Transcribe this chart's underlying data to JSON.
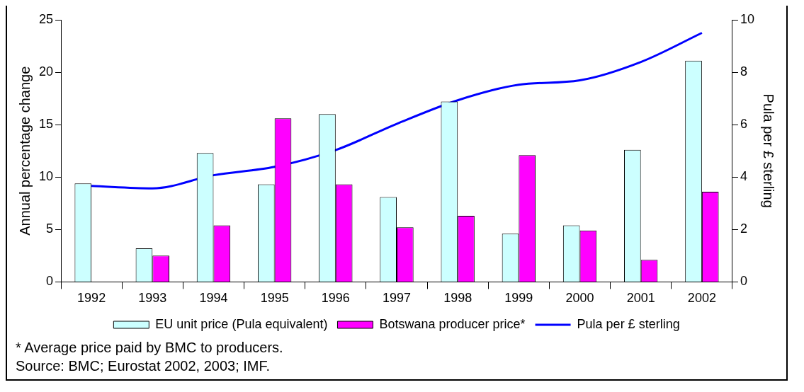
{
  "chart_data": {
    "type": "bar",
    "ylabel": "Annual percentage change",
    "y2label": "Pula per £ sterling",
    "categories": [
      "1992",
      "1993",
      "1994",
      "1995",
      "1996",
      "1997",
      "1998",
      "1999",
      "2000",
      "2001",
      "2002"
    ],
    "series": [
      {
        "name": "EU unit price (Pula equivalent)",
        "color": "#ccffff",
        "values": [
          9.4,
          3.2,
          12.3,
          9.3,
          16.0,
          8.1,
          17.2,
          4.6,
          5.4,
          12.6,
          21.1
        ]
      },
      {
        "name": "Botswana producer price*",
        "color": "#ff00ff",
        "values": [
          null,
          2.5,
          5.4,
          15.6,
          9.3,
          5.2,
          6.3,
          12.1,
          4.9,
          2.1,
          8.6
        ]
      },
      {
        "name": "Pula per £ sterling",
        "type": "line",
        "axis": "y2",
        "color": "#0000ff",
        "values": [
          3.66,
          3.57,
          4.07,
          4.39,
          5.03,
          6.03,
          6.93,
          7.52,
          7.69,
          8.39,
          9.5
        ]
      }
    ],
    "ylim": [
      0,
      25
    ],
    "yticks": [
      0,
      5,
      10,
      15,
      20,
      25
    ],
    "y2lim": [
      0,
      10
    ],
    "y2ticks": [
      0,
      2,
      4,
      6,
      8,
      10
    ],
    "grid": false,
    "legend": "bottom",
    "marker": "none",
    "annotations": [
      "*  Average price paid by BMC to producers.",
      "Source: BMC; Eurostat 2002, 2003; IMF."
    ]
  }
}
